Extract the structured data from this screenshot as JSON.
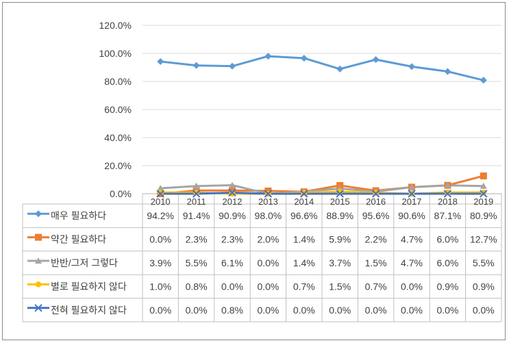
{
  "chart_data": {
    "type": "line",
    "categories": [
      "2010",
      "2011",
      "2012",
      "2013",
      "2014",
      "2015",
      "2016",
      "2017",
      "2018",
      "2019"
    ],
    "ylim": [
      0,
      120
    ],
    "yticks": [
      "0.0%",
      "20.0%",
      "40.0%",
      "60.0%",
      "80.0%",
      "100.0%",
      "120.0%"
    ],
    "grid": true,
    "legend": "data-table",
    "series": [
      {
        "name": "매우 필요하다",
        "color": "#5b9bd5",
        "marker": "diamond",
        "values": [
          94.2,
          91.4,
          90.9,
          98.0,
          96.6,
          88.9,
          95.6,
          90.6,
          87.1,
          80.9
        ],
        "labels": [
          "94.2%",
          "91.4%",
          "90.9%",
          "98.0%",
          "96.6%",
          "88.9%",
          "95.6%",
          "90.6%",
          "87.1%",
          "80.9%"
        ]
      },
      {
        "name": "약간 필요하다",
        "color": "#ed7d31",
        "marker": "square",
        "values": [
          0.0,
          2.3,
          2.3,
          2.0,
          1.4,
          5.9,
          2.2,
          4.7,
          6.0,
          12.7
        ],
        "labels": [
          "0.0%",
          "2.3%",
          "2.3%",
          "2.0%",
          "1.4%",
          "5.9%",
          "2.2%",
          "4.7%",
          "6.0%",
          "12.7%"
        ]
      },
      {
        "name": "반반/그저 그렇다",
        "color": "#a5a5a5",
        "marker": "triangle",
        "values": [
          3.9,
          5.5,
          6.1,
          0.0,
          1.4,
          3.7,
          1.5,
          4.7,
          6.0,
          5.5
        ],
        "labels": [
          "3.9%",
          "5.5%",
          "6.1%",
          "0.0%",
          "1.4%",
          "3.7%",
          "1.5%",
          "4.7%",
          "6.0%",
          "5.5%"
        ]
      },
      {
        "name": "별로 필요하지 않다",
        "color": "#ffc000",
        "marker": "circle",
        "values": [
          1.0,
          0.8,
          0.0,
          0.0,
          0.7,
          1.5,
          0.7,
          0.0,
          0.9,
          0.9
        ],
        "labels": [
          "1.0%",
          "0.8%",
          "0.0%",
          "0.0%",
          "0.7%",
          "1.5%",
          "0.7%",
          "0.0%",
          "0.9%",
          "0.9%"
        ]
      },
      {
        "name": "전혀 필요하지 않다",
        "color": "#4472c4",
        "marker": "x",
        "values": [
          0.0,
          0.0,
          0.8,
          0.0,
          0.0,
          0.0,
          0.0,
          0.0,
          0.0,
          0.0
        ],
        "labels": [
          "0.0%",
          "0.0%",
          "0.8%",
          "0.0%",
          "0.0%",
          "0.0%",
          "0.0%",
          "0.0%",
          "0.0%",
          "0.0%"
        ]
      }
    ]
  }
}
